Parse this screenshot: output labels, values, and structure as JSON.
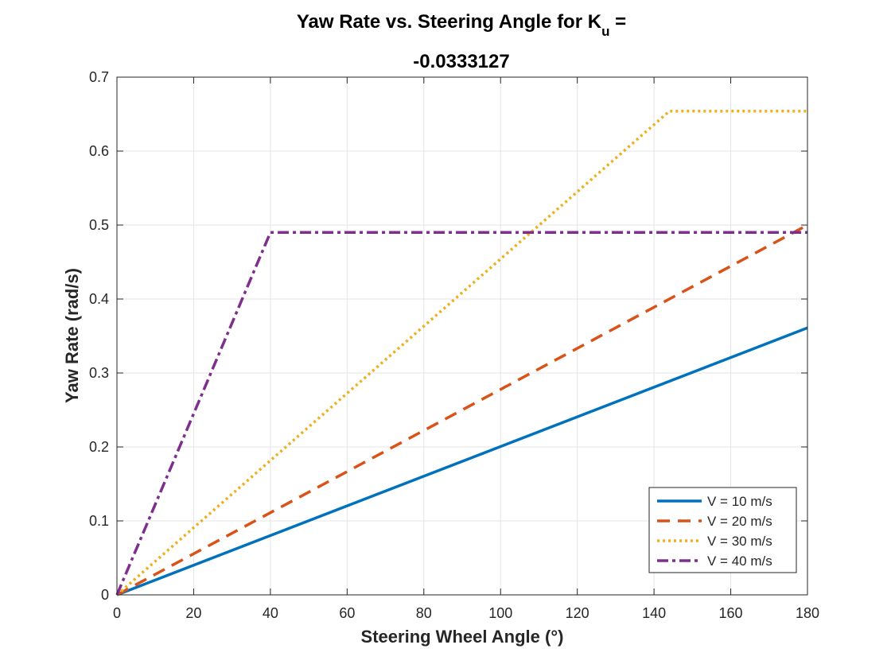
{
  "chart_data": {
    "type": "line",
    "title_line1": "Yaw Rate vs. Steering Angle for K",
    "title_subscript": "u",
    "title_suffix": " =",
    "title_line2": "-0.0333127",
    "xlabel": "Steering Wheel Angle (°)",
    "ylabel": "Yaw Rate (rad/s)",
    "xlim": [
      0,
      180
    ],
    "ylim": [
      0,
      0.7
    ],
    "xticks": [
      0,
      20,
      40,
      60,
      80,
      100,
      120,
      140,
      160,
      180
    ],
    "yticks": [
      0,
      0.1,
      0.2,
      0.3,
      0.4,
      0.5,
      0.6,
      0.7
    ],
    "xtick_labels": [
      "0",
      "20",
      "40",
      "60",
      "80",
      "100",
      "120",
      "140",
      "160",
      "180"
    ],
    "ytick_labels": [
      "0",
      "0.1",
      "0.2",
      "0.3",
      "0.4",
      "0.5",
      "0.6",
      "0.7"
    ],
    "grid": true,
    "legend_position": "bottom-right",
    "series": [
      {
        "name": "V = 10 m/s",
        "color": "#0072BD",
        "dash": "solid",
        "x": [
          0,
          180
        ],
        "y": [
          0,
          0.361
        ]
      },
      {
        "name": "V = 20 m/s",
        "color": "#D95319",
        "dash": "dashed",
        "x": [
          0,
          180
        ],
        "y": [
          0,
          0.5
        ]
      },
      {
        "name": "V = 30 m/s",
        "color": "#EDB120",
        "dash": "dotted",
        "x": [
          0,
          144,
          180
        ],
        "y": [
          0,
          0.654,
          0.654
        ]
      },
      {
        "name": "V = 40 m/s",
        "color": "#7E2F8E",
        "dash": "dashdot",
        "x": [
          0,
          40,
          180
        ],
        "y": [
          0,
          0.49,
          0.49
        ]
      }
    ]
  }
}
